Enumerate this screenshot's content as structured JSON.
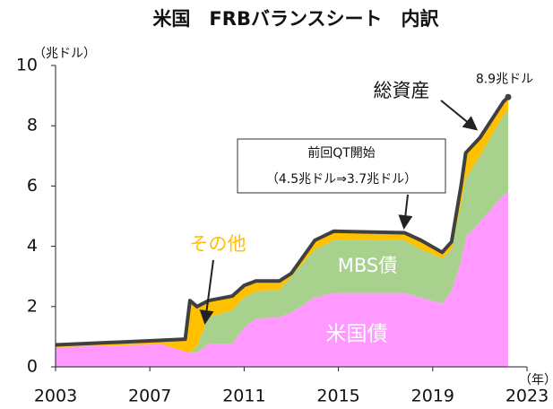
{
  "chart_data": {
    "type": "stacked_area",
    "title": "米国　FRBバランスシート　内訳",
    "y_label": "（兆ドル）",
    "x_label": "（年）",
    "xlim": [
      2003,
      2023
    ],
    "ylim": [
      0,
      10
    ],
    "xticks": [
      2003,
      2007,
      2011,
      2015,
      2019,
      2023
    ],
    "yticks": [
      0,
      2,
      4,
      6,
      8,
      10
    ],
    "x": [
      2003,
      2007.5,
      2008.5,
      2008.7,
      2009,
      2009.5,
      2010.5,
      2011,
      2011.5,
      2012.5,
      2013,
      2014,
      2014.8,
      2017.8,
      2018.5,
      2019.4,
      2019.8,
      2020.2,
      2020.4,
      2021,
      2022,
      2022.2
    ],
    "series": [
      {
        "name": "米国債",
        "color": "#ff99ff",
        "values": [
          0.65,
          0.75,
          0.5,
          0.48,
          0.48,
          0.75,
          0.78,
          1.3,
          1.6,
          1.65,
          1.8,
          2.3,
          2.45,
          2.45,
          2.3,
          2.1,
          2.5,
          3.5,
          4.3,
          4.8,
          5.7,
          5.8
        ]
      },
      {
        "name": "MBS債",
        "color": "#a9d18e",
        "values": [
          0,
          0,
          0,
          0,
          0.2,
          0.9,
          1.1,
          1.0,
          0.9,
          0.9,
          1.2,
          1.6,
          1.75,
          1.75,
          1.6,
          1.5,
          1.4,
          1.9,
          1.95,
          2.2,
          2.65,
          2.7
        ]
      },
      {
        "name": "その他",
        "color": "#ffc000",
        "values": [
          0.08,
          0.13,
          0.42,
          1.72,
          1.32,
          0.55,
          0.47,
          0.4,
          0.35,
          0.3,
          0.1,
          0.3,
          0.3,
          0.25,
          0.3,
          0.2,
          0.25,
          0.6,
          0.85,
          0.6,
          0.45,
          0.45
        ]
      }
    ],
    "total": {
      "name": "総資産",
      "color": "#404040",
      "values": [
        0.73,
        0.88,
        0.92,
        2.2,
        2.0,
        2.2,
        2.35,
        2.7,
        2.85,
        2.85,
        3.1,
        4.2,
        4.5,
        4.45,
        4.2,
        3.8,
        4.15,
        6.0,
        7.1,
        7.6,
        8.8,
        8.95
      ],
      "value_labels": [
        null,
        null,
        null,
        null,
        null,
        null,
        null,
        null,
        null,
        null,
        null,
        null,
        null,
        null,
        null,
        null,
        null,
        null,
        null,
        null,
        null,
        "8.9兆ドル"
      ]
    },
    "annotation": [
      "前回QT開始",
      "（4.5兆ドル⇒3.7兆ドル）"
    ]
  }
}
